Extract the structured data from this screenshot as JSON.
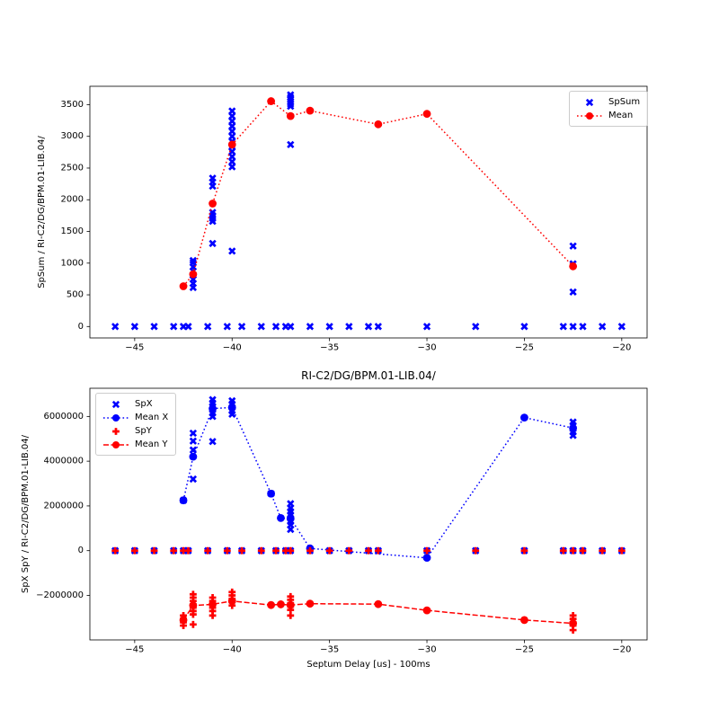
{
  "chart_data": [
    {
      "type": "scatter",
      "title": "",
      "xlabel": "",
      "ylabel": "SpSum / RI-C2/DG/BPM.01-LIB.04/",
      "xlim": [
        -47.3,
        -18.7
      ],
      "ylim": [
        -180,
        3790
      ],
      "xticks": [
        -45,
        -40,
        -35,
        -30,
        -25,
        -20
      ],
      "yticks": [
        0,
        500,
        1000,
        1500,
        2000,
        2500,
        3000,
        3500
      ],
      "grid": false,
      "legend_position": "upper-right",
      "series": [
        {
          "name": "SpSum",
          "kind": "scatter",
          "marker": "X",
          "color": "#0000ff",
          "x_at_zero": [
            -46,
            -45,
            -44,
            -43,
            -42.5,
            -42.25,
            -41.25,
            -40.25,
            -39.5,
            -38.5,
            -37.75,
            -37.25,
            -37,
            -36,
            -35,
            -34,
            -33,
            -32.5,
            -30,
            -27.5,
            -25,
            -23,
            -22.5,
            -22,
            -21,
            -20
          ],
          "groups": [
            {
              "x": -42,
              "y": [
                615,
                680,
                745,
                810,
                875,
                940,
                1005,
                1040
              ]
            },
            {
              "x": -41,
              "y": [
                1310,
                1660,
                1705,
                1750,
                1800,
                2215,
                2280,
                2340
              ]
            },
            {
              "x": -40,
              "y": [
                1190,
                2520,
                2600,
                2680,
                2760,
                2840,
                2920,
                3000,
                3080,
                3160,
                3240,
                3320,
                3400
              ]
            },
            {
              "x": -37,
              "y": [
                2870,
                3475,
                3510,
                3545,
                3580,
                3615,
                3655
              ]
            },
            {
              "x": -22.5,
              "y": [
                545,
                990,
                1270
              ]
            }
          ]
        },
        {
          "name": "Mean",
          "kind": "line",
          "marker": "o",
          "color": "#ff0000",
          "line": "dotted",
          "points": [
            [
              -42.5,
              635
            ],
            [
              -42,
              825
            ],
            [
              -41,
              1940
            ],
            [
              -40,
              2870
            ],
            [
              -38,
              3555
            ],
            [
              -37,
              3320
            ],
            [
              -36,
              3405
            ],
            [
              -32.5,
              3190
            ],
            [
              -30,
              3355
            ],
            [
              -22.5,
              950
            ]
          ]
        }
      ]
    },
    {
      "type": "scatter",
      "title": "RI-C2/DG/BPM.01-LIB.04/",
      "xlabel": "Septum Delay [us] - 100ms",
      "ylabel": "SpX SpY / RI-C2/DG/BPM.01-LIB.04/",
      "xlim": [
        -47.3,
        -18.7
      ],
      "ylim": [
        -3990000,
        7260000
      ],
      "xticks": [
        -45,
        -40,
        -35,
        -30,
        -25,
        -20
      ],
      "yticks": [
        -2000000,
        0,
        2000000,
        4000000,
        6000000
      ],
      "grid": false,
      "legend_position": "upper-left",
      "series": [
        {
          "name": "SpX",
          "kind": "scatter",
          "marker": "X",
          "color": "#0000ff",
          "x_at_zero": [
            -46,
            -45,
            -44,
            -43,
            -42.5,
            -42.25,
            -41.25,
            -40.25,
            -39.5,
            -38.5,
            -37.75,
            -37.25,
            -37,
            -36,
            -35,
            -34,
            -33,
            -32.5,
            -30,
            -27.5,
            -25,
            -23,
            -22.5,
            -22,
            -21,
            -20
          ],
          "groups": [
            {
              "x": -42.5,
              "y": [
                2250000
              ]
            },
            {
              "x": -42,
              "y": [
                5250000,
                4900000,
                4500000,
                3200000
              ]
            },
            {
              "x": -41,
              "y": [
                6750000,
                6600000,
                6450000,
                6300000,
                6150000,
                6000000,
                4880000
              ]
            },
            {
              "x": -40,
              "y": [
                6700000,
                6550000,
                6400000,
                6250000,
                6100000
              ]
            },
            {
              "x": -38,
              "y": [
                2550000
              ]
            },
            {
              "x": -37,
              "y": [
                2100000,
                1900000,
                1750000,
                1600000,
                1450000,
                1300000,
                1150000,
                950000
              ]
            },
            {
              "x": -22.5,
              "y": [
                5750000,
                5600000,
                5450000,
                5300000,
                5150000
              ]
            }
          ]
        },
        {
          "name": "Mean X",
          "kind": "line",
          "marker": "o",
          "color": "#0000ff",
          "line": "dotted",
          "points": [
            [
              -42.5,
              2250000
            ],
            [
              -42,
              4200000
            ],
            [
              -41,
              6350000
            ],
            [
              -40,
              6400000
            ],
            [
              -38,
              2550000
            ],
            [
              -37.5,
              1460000
            ],
            [
              -37,
              1440000
            ],
            [
              -36,
              100000
            ],
            [
              -30,
              -320000
            ],
            [
              -25,
              5950000
            ],
            [
              -22.5,
              5480000
            ]
          ]
        },
        {
          "name": "SpY",
          "kind": "scatter",
          "marker": "P",
          "color": "#ff0000",
          "x_at_zero": [
            -46,
            -45,
            -44,
            -43,
            -42.5,
            -42.25,
            -41.25,
            -40.25,
            -39.5,
            -38.5,
            -37.75,
            -37.25,
            -37,
            -36,
            -35,
            -34,
            -33,
            -32.5,
            -30,
            -27.5,
            -25,
            -23,
            -22.5,
            -22,
            -21,
            -20
          ],
          "groups": [
            {
              "x": -42.5,
              "y": [
                -2900000,
                -3050000,
                -3200000,
                -3350000
              ]
            },
            {
              "x": -42,
              "y": [
                -1950000,
                -2100000,
                -2250000,
                -2400000,
                -2550000,
                -2700000,
                -2850000,
                -3300000
              ]
            },
            {
              "x": -41,
              "y": [
                -2100000,
                -2250000,
                -2400000,
                -2550000,
                -2700000,
                -2900000
              ]
            },
            {
              "x": -40,
              "y": [
                -1850000,
                -2000000,
                -2150000,
                -2300000,
                -2450000
              ]
            },
            {
              "x": -38,
              "y": [
                -2430000
              ]
            },
            {
              "x": -37.5,
              "y": [
                -2390000
              ]
            },
            {
              "x": -37,
              "y": [
                -2050000,
                -2200000,
                -2350000,
                -2500000,
                -2650000,
                -2900000
              ]
            },
            {
              "x": -36,
              "y": [
                -2370000
              ]
            },
            {
              "x": -32.5,
              "y": [
                -2390000
              ]
            },
            {
              "x": -30,
              "y": [
                -2670000
              ]
            },
            {
              "x": -25,
              "y": [
                -3100000
              ]
            },
            {
              "x": -22.5,
              "y": [
                -2900000,
                -3050000,
                -3200000,
                -3350000,
                -3550000
              ]
            }
          ]
        },
        {
          "name": "Mean Y",
          "kind": "line",
          "marker": "o",
          "color": "#ff0000",
          "line": "dashed",
          "points": [
            [
              -42.5,
              -3100000
            ],
            [
              -42,
              -2450000
            ],
            [
              -41,
              -2400000
            ],
            [
              -40,
              -2250000
            ],
            [
              -38,
              -2430000
            ],
            [
              -37.5,
              -2400000
            ],
            [
              -37,
              -2430000
            ],
            [
              -36,
              -2370000
            ],
            [
              -32.5,
              -2390000
            ],
            [
              -30,
              -2670000
            ],
            [
              -25,
              -3100000
            ],
            [
              -22.5,
              -3250000
            ]
          ]
        }
      ]
    }
  ]
}
